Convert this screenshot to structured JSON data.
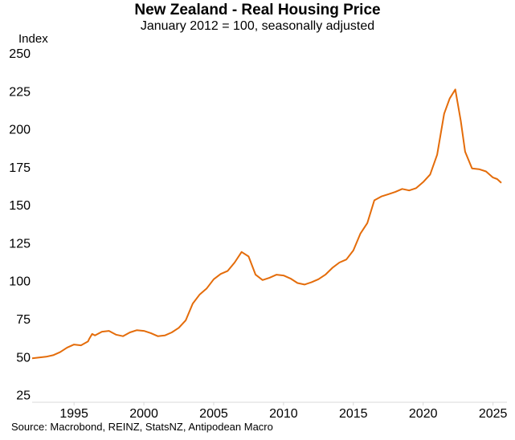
{
  "chart_data": {
    "type": "line",
    "title": "New Zealand - Real Housing Price",
    "subtitle": "January 2012 = 100, seasonally adjusted",
    "ylabel": "Index",
    "xlabel": "",
    "source": "Source: Macrobond, REINZ, StatsNZ, Antipodean Macro",
    "xlim": [
      1992.0,
      2026.0
    ],
    "ylim": [
      20,
      250
    ],
    "yticks": [
      25,
      50,
      75,
      100,
      125,
      150,
      175,
      200,
      225,
      250
    ],
    "xticks": [
      1995,
      2000,
      2005,
      2010,
      2015,
      2020,
      2025
    ],
    "grid": false,
    "legend": "none",
    "series": [
      {
        "color": "#E46C0A",
        "x": [
          1992.0,
          1992.5,
          1993.0,
          1993.5,
          1994.0,
          1994.5,
          1995.0,
          1995.5,
          1996.0,
          1996.1,
          1996.3,
          1996.5,
          1997.0,
          1997.5,
          1998.0,
          1998.5,
          1999.0,
          1999.5,
          2000.0,
          2000.5,
          2001.0,
          2001.5,
          2002.0,
          2002.5,
          2003.0,
          2003.5,
          2004.0,
          2004.5,
          2005.0,
          2005.5,
          2006.0,
          2006.5,
          2007.0,
          2007.5,
          2008.0,
          2008.5,
          2009.0,
          2009.5,
          2010.0,
          2010.5,
          2011.0,
          2011.5,
          2012.0,
          2012.5,
          2013.0,
          2013.5,
          2014.0,
          2014.5,
          2015.0,
          2015.5,
          2016.0,
          2016.5,
          2017.0,
          2017.5,
          2018.0,
          2018.5,
          2019.0,
          2019.5,
          2020.0,
          2020.5,
          2021.0,
          2021.5,
          2021.9,
          2022.3,
          2022.7,
          2023.0,
          2023.5,
          2024.0,
          2024.5,
          2025.0,
          2025.3,
          2025.6
        ],
        "y": [
          49,
          49.5,
          50,
          51,
          53,
          56,
          58,
          57.5,
          60,
          62,
          65,
          64,
          66.5,
          67,
          64.5,
          63.5,
          66,
          67.5,
          67,
          65.5,
          63.5,
          64,
          66,
          69,
          74,
          85,
          91,
          95,
          101,
          104.5,
          106.5,
          112,
          119,
          116,
          104,
          100.5,
          102,
          104,
          103.5,
          101.5,
          98.5,
          97.5,
          99,
          101,
          104,
          108.5,
          112,
          114,
          120,
          131,
          138,
          153,
          155.5,
          157,
          158.5,
          160.5,
          159.5,
          161,
          165,
          170,
          183,
          210,
          220,
          226,
          205,
          185,
          174,
          173.5,
          172,
          168,
          167,
          164.5
        ]
      }
    ]
  }
}
